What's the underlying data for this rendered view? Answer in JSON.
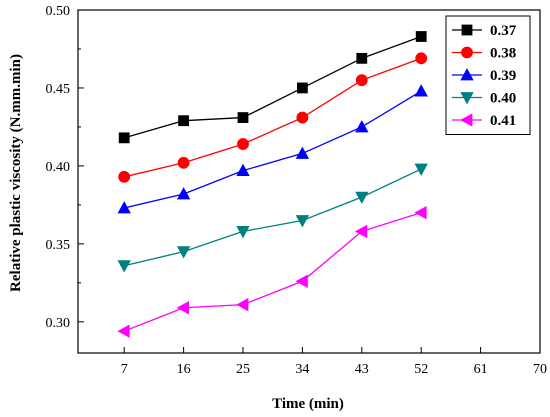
{
  "chart_data": {
    "type": "line",
    "xlabel": "Time (min)",
    "ylabel": "Relative plastic viscosity (N.mm.min)",
    "xlim": [
      0,
      70
    ],
    "ylim": [
      0.28,
      0.5
    ],
    "xticks": [
      7,
      16,
      25,
      34,
      43,
      52,
      61,
      70
    ],
    "yticks": [
      0.3,
      0.35,
      0.4,
      0.45,
      0.5
    ],
    "ytick_labels": [
      "0.30",
      "0.35",
      "0.40",
      "0.45",
      "0.50"
    ],
    "x": [
      7,
      16,
      25,
      34,
      43,
      52
    ],
    "legend_position": "top-right",
    "grid": false,
    "series": [
      {
        "name": "0.37",
        "color": "#000000",
        "marker": "square",
        "values": [
          0.418,
          0.429,
          0.431,
          0.45,
          0.469,
          0.483
        ]
      },
      {
        "name": "0.38",
        "color": "#ff0000",
        "marker": "circle",
        "values": [
          0.393,
          0.402,
          0.414,
          0.431,
          0.455,
          0.469
        ]
      },
      {
        "name": "0.39",
        "color": "#0000ff",
        "marker": "triangle-up",
        "values": [
          0.373,
          0.382,
          0.397,
          0.408,
          0.425,
          0.448
        ]
      },
      {
        "name": "0.40",
        "color": "#008080",
        "marker": "triangle-down",
        "values": [
          0.336,
          0.345,
          0.358,
          0.365,
          0.38,
          0.398
        ]
      },
      {
        "name": "0.41",
        "color": "#ff00ff",
        "marker": "triangle-left",
        "values": [
          0.294,
          0.309,
          0.311,
          0.326,
          0.358,
          0.37
        ]
      }
    ]
  }
}
